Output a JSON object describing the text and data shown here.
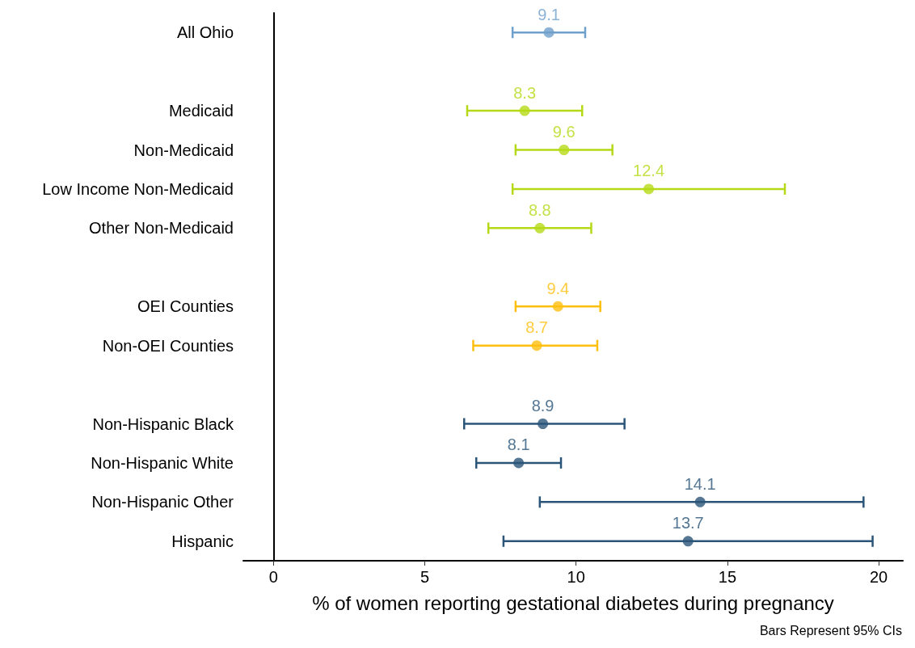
{
  "chart_data": {
    "type": "scatter",
    "orientation": "horizontal",
    "xlabel": "% of women reporting gestational diabetes during pregnancy",
    "categories": [
      "All Ohio",
      "Medicaid",
      "Non-Medicaid",
      "Low Income Non-Medicaid",
      "Other Non-Medicaid",
      "OEI Counties",
      "Non-OEI Counties",
      "Non-Hispanic Black",
      "Non-Hispanic White",
      "Non-Hispanic Other",
      "Hispanic"
    ],
    "values": [
      9.1,
      8.3,
      9.6,
      12.4,
      8.8,
      9.4,
      8.7,
      8.9,
      8.1,
      14.1,
      13.7
    ],
    "errors": [
      [
        7.9,
        10.3
      ],
      [
        6.4,
        10.2
      ],
      [
        8.0,
        11.2
      ],
      [
        7.9,
        16.9
      ],
      [
        7.1,
        10.5
      ],
      [
        8.0,
        10.8
      ],
      [
        6.6,
        10.7
      ],
      [
        6.3,
        11.6
      ],
      [
        6.7,
        9.5
      ],
      [
        8.8,
        19.5
      ],
      [
        7.6,
        19.8
      ]
    ],
    "colors": [
      "#6fa0cc",
      "#b5d916",
      "#b5d916",
      "#b5d916",
      "#b5d916",
      "#ffbf0f",
      "#ffbf0f",
      "#2a5578",
      "#2a5578",
      "#2a5578",
      "#2a5578"
    ],
    "xlim": [
      -1,
      20.8
    ],
    "xticks": [
      0,
      5,
      10,
      15,
      20
    ],
    "data_labels": true,
    "marker": "circle",
    "annotations": [
      "Bars Represent 95% CIs"
    ]
  }
}
